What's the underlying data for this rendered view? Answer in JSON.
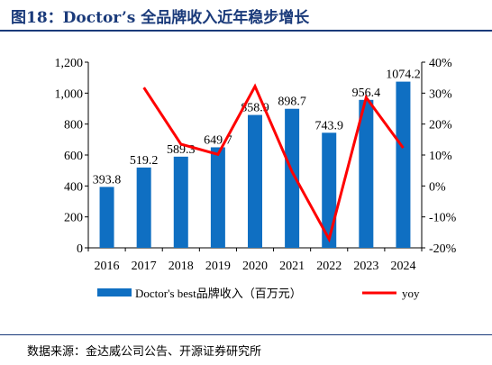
{
  "header": {
    "title": "图18：Doctor’s 全品牌收入近年稳步增长"
  },
  "footer": {
    "source": "数据来源：金达威公司公告、开源证券研究所"
  },
  "chart_data": {
    "type": "bar",
    "title": "图18：Doctor’s 全品牌收入近年稳步增长",
    "categories": [
      "2016",
      "2017",
      "2018",
      "2019",
      "2020",
      "2021",
      "2022",
      "2023",
      "2024"
    ],
    "series": [
      {
        "name": "Doctor's best品牌收入（百万元）",
        "type": "bar",
        "axis": "left",
        "color": "#0f6fc2",
        "values": [
          393.8,
          519.2,
          589.3,
          649.7,
          858.9,
          898.7,
          743.9,
          956.4,
          1074.2
        ],
        "data_labels": [
          "393.8",
          "519.2",
          "589.3",
          "649.7",
          "858.9",
          "898.7",
          "743.9",
          "956.4",
          "1074.2"
        ]
      },
      {
        "name": "yoy",
        "type": "line",
        "axis": "right",
        "color": "#ff0000",
        "values": [
          null,
          31.8,
          13.5,
          10.2,
          32.2,
          4.6,
          -17.2,
          28.6,
          12.3
        ]
      }
    ],
    "y_left": {
      "min": 0,
      "max": 1200,
      "ticks": [
        0,
        200,
        400,
        600,
        800,
        1000,
        1200
      ],
      "tick_labels": [
        "0",
        "200",
        "400",
        "600",
        "800",
        "1,000",
        "1,200"
      ]
    },
    "y_right": {
      "min": -20,
      "max": 40,
      "ticks": [
        -20,
        -10,
        0,
        10,
        20,
        30,
        40
      ],
      "tick_labels": [
        "-20%",
        "-10%",
        "0%",
        "10%",
        "20%",
        "30%",
        "40%"
      ]
    },
    "grid": false,
    "legend_position": "bottom"
  }
}
